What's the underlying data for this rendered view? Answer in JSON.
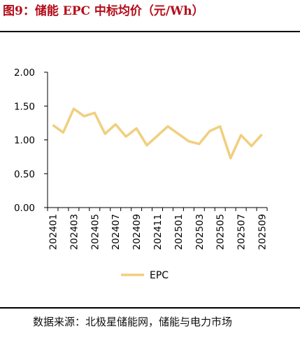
{
  "figure": {
    "title": "图9：储能 EPC 中标均价（元/Wh）",
    "source": "数据来源：北极星储能网，储能与电力市场"
  },
  "colors": {
    "title": "#b40d1a",
    "series_line": "#f0cf7f",
    "axis": "#000000"
  },
  "chart_data": {
    "type": "line",
    "title": "",
    "xlabel": "",
    "ylabel": "",
    "x": [
      "202401",
      "202402",
      "202403",
      "202404",
      "202405",
      "202406",
      "202407",
      "202408",
      "202409",
      "202410",
      "202411",
      "202412",
      "202501",
      "202502",
      "202503",
      "202504",
      "202505",
      "202506",
      "202507",
      "202508",
      "202509"
    ],
    "x_tick_labels": [
      "202401",
      "202403",
      "202405",
      "202407",
      "202409",
      "202411",
      "202501",
      "202503",
      "202505",
      "202507",
      "202509"
    ],
    "y_ticks": [
      "0.00",
      "0.50",
      "1.00",
      "1.50",
      "2.00"
    ],
    "ylim": [
      0,
      2
    ],
    "grid": false,
    "legend_position": "bottom",
    "series": [
      {
        "name": "EPC",
        "values": [
          1.22,
          1.11,
          1.46,
          1.35,
          1.4,
          1.09,
          1.23,
          1.05,
          1.17,
          0.92,
          1.06,
          1.2,
          1.09,
          0.98,
          0.94,
          1.13,
          1.2,
          0.73,
          1.07,
          0.91,
          1.08
        ]
      }
    ]
  }
}
